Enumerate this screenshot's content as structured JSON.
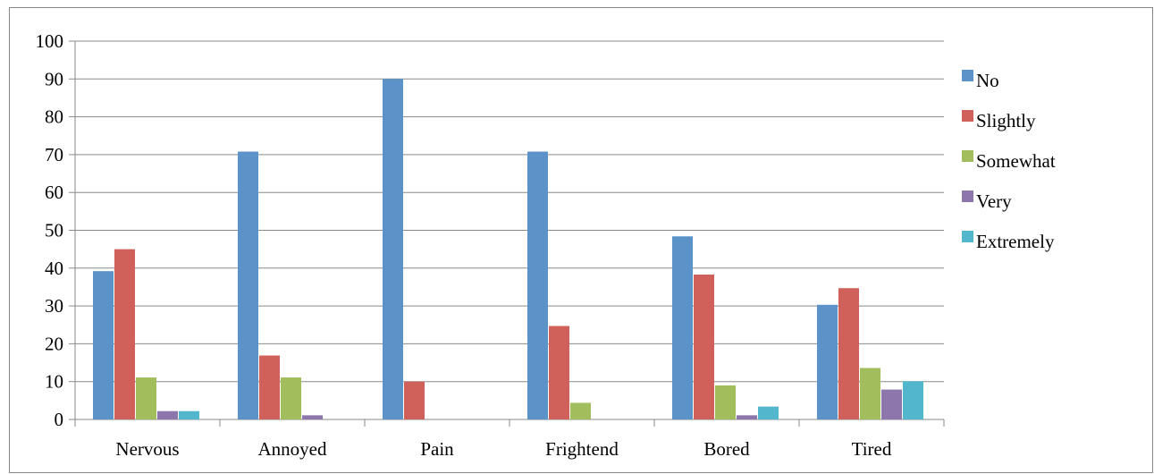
{
  "chart_data": {
    "type": "bar",
    "title": "",
    "xlabel": "",
    "ylabel": "",
    "ylim": [
      0,
      100
    ],
    "yticks": [
      0,
      10,
      20,
      30,
      40,
      50,
      60,
      70,
      80,
      90,
      100
    ],
    "grid": true,
    "legend_position": "right",
    "categories": [
      "Nervous",
      "Annoyed",
      "Pain",
      "Frightend",
      "Bored",
      "Tired"
    ],
    "series": [
      {
        "name": "No",
        "color": "#5B93C9",
        "values": [
          39.2,
          70.8,
          90.0,
          70.8,
          48.4,
          30.3
        ]
      },
      {
        "name": "Slightly",
        "color": "#D0605A",
        "values": [
          45.0,
          16.9,
          10.0,
          24.7,
          38.3,
          34.7
        ]
      },
      {
        "name": "Somewhat",
        "color": "#A2BE5C",
        "values": [
          11.1,
          11.1,
          0,
          4.4,
          9.0,
          13.6
        ]
      },
      {
        "name": "Very",
        "color": "#8C76AC",
        "values": [
          2.2,
          1.1,
          0,
          0,
          1.1,
          7.9
        ]
      },
      {
        "name": "Extremely",
        "color": "#52B6CC",
        "values": [
          2.2,
          0,
          0,
          0,
          3.4,
          10.1
        ]
      }
    ]
  }
}
